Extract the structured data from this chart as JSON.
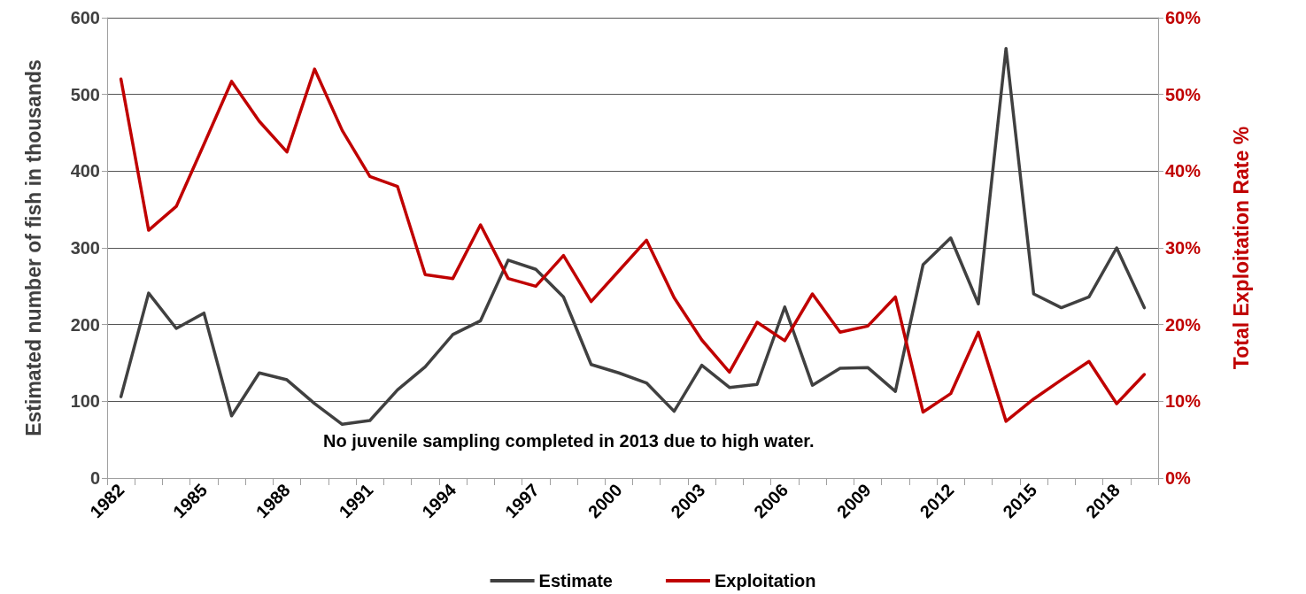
{
  "chart_data": {
    "type": "line",
    "categories": [
      "1982",
      null,
      null,
      "1985",
      null,
      null,
      "1988",
      null,
      null,
      "1991",
      null,
      null,
      "1994",
      null,
      null,
      "1997",
      null,
      null,
      "2000",
      null,
      null,
      "2003",
      null,
      null,
      "2006",
      null,
      null,
      "2009",
      null,
      null,
      "2012",
      null,
      null,
      "2015",
      null,
      null,
      "2018",
      null
    ],
    "series": [
      {
        "name": "Estimate",
        "color": "#404040",
        "values": [
          106,
          241,
          195,
          215,
          81,
          137,
          128,
          97,
          70,
          75,
          115,
          145,
          187,
          205,
          284,
          272,
          236,
          148,
          137,
          124,
          87,
          147,
          118,
          122,
          223,
          121,
          143,
          144,
          113,
          278,
          313,
          227,
          560,
          240,
          222,
          236,
          300,
          222
        ]
      },
      {
        "name": "Exploitation",
        "color": "#c00000",
        "axis": "y2",
        "values": [
          52,
          32.3,
          35.4,
          43.5,
          51.7,
          46.5,
          42.5,
          53.3,
          45.3,
          39.3,
          38,
          26.5,
          26,
          33,
          26,
          25,
          29,
          23,
          27,
          31,
          23.5,
          18,
          13.8,
          20.3,
          17.9,
          24,
          19,
          19.8,
          23.6,
          8.6,
          11,
          19,
          7.4,
          10.3,
          12.8,
          15.2,
          9.7,
          13.5
        ]
      }
    ],
    "ylabel": "Estimated number of fish in thousands",
    "y2label": "Total Exploitation Rate %",
    "ylim": [
      0,
      600
    ],
    "yticks": [
      0,
      100,
      200,
      300,
      400,
      500,
      600
    ],
    "y2lim": [
      0,
      60
    ],
    "y2ticks": [
      {
        "value": 0,
        "label": "0%"
      },
      {
        "value": 10,
        "label": "10%"
      },
      {
        "value": 20,
        "label": "20%"
      },
      {
        "value": 30,
        "label": "30%"
      },
      {
        "value": 40,
        "label": "40%"
      },
      {
        "value": 50,
        "label": "50%"
      },
      {
        "value": 60,
        "label": "60%"
      }
    ],
    "annotations": [
      "No juvenile sampling completed in 2013 due to high water."
    ],
    "grid": "y",
    "legend": "bottom",
    "marker": "none",
    "line_style": "solid"
  }
}
